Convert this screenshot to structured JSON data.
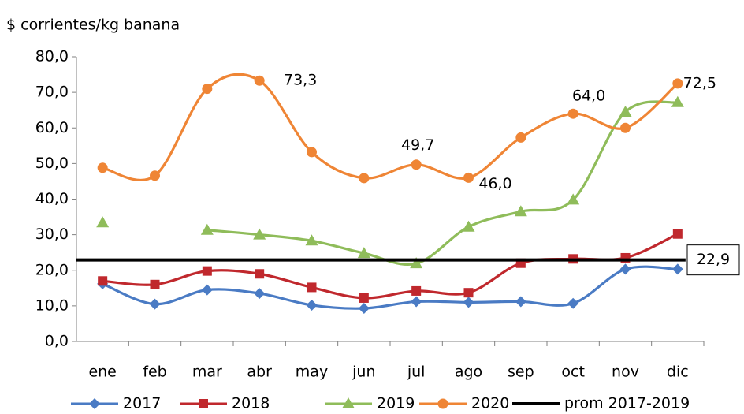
{
  "chart_data": {
    "type": "line",
    "y_axis_label": "$ corrientes/kg banana",
    "categories": [
      "ene",
      "feb",
      "mar",
      "abr",
      "may",
      "jun",
      "jul",
      "ago",
      "sep",
      "oct",
      "nov",
      "dic"
    ],
    "ylim": [
      0,
      80
    ],
    "yticks": [
      {
        "value": 0,
        "label": "0,0"
      },
      {
        "value": 10,
        "label": "10,0"
      },
      {
        "value": 20,
        "label": "20,0"
      },
      {
        "value": 30,
        "label": "30,0"
      },
      {
        "value": 40,
        "label": "40,0"
      },
      {
        "value": 50,
        "label": "50,0"
      },
      {
        "value": 60,
        "label": "60,0"
      },
      {
        "value": 70,
        "label": "70,0"
      },
      {
        "value": 80,
        "label": "80,0"
      }
    ],
    "grid": false,
    "legend": "bottom",
    "series": [
      {
        "name": "2017",
        "color": "#4a7bc4",
        "marker": "diamond",
        "values": [
          16.2,
          10.5,
          14.5,
          13.5,
          10.2,
          9.3,
          11.2,
          11.0,
          11.2,
          10.7,
          20.3,
          20.3
        ]
      },
      {
        "name": "2018",
        "color": "#c0282d",
        "marker": "square",
        "values": [
          17.0,
          16.0,
          19.8,
          19.0,
          15.2,
          12.2,
          14.2,
          13.7,
          22.0,
          23.2,
          23.5,
          30.2
        ]
      },
      {
        "name": "2019",
        "color": "#8fbc5a",
        "marker": "triangle",
        "values": [
          33.4,
          null,
          31.3,
          30.0,
          28.3,
          24.8,
          21.9,
          32.2,
          36.5,
          39.8,
          64.5,
          67.2
        ]
      },
      {
        "name": "2020",
        "color": "#ef8535",
        "marker": "circle",
        "values": [
          48.8,
          46.6,
          71.0,
          73.3,
          53.2,
          45.9,
          49.7,
          46.0,
          57.3,
          64.0,
          60.0,
          72.5
        ],
        "value_labels": [
          null,
          null,
          null,
          "73,3",
          null,
          null,
          "49,7",
          "46,0",
          null,
          "64,0",
          null,
          "72,5"
        ]
      },
      {
        "name": "prom 2017-2019",
        "color": "#000000",
        "marker": "none",
        "values": [
          22.9,
          22.9,
          22.9,
          22.9,
          22.9,
          22.9,
          22.9,
          22.9,
          22.9,
          22.9,
          22.9,
          22.9
        ],
        "value_labels": [
          null,
          null,
          null,
          null,
          null,
          null,
          null,
          null,
          null,
          null,
          null,
          "22,9"
        ]
      }
    ]
  }
}
